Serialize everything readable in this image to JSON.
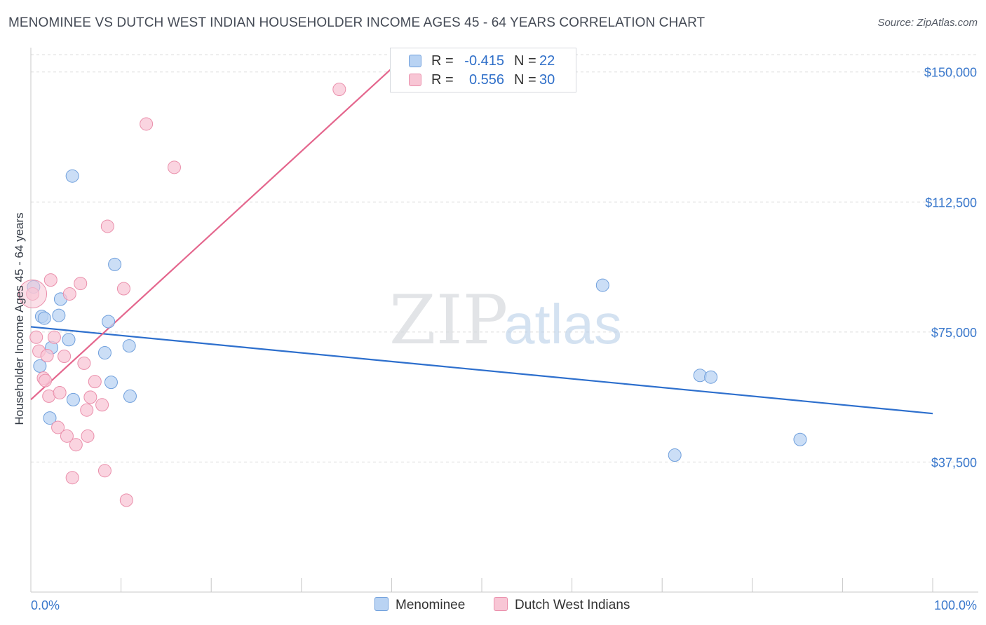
{
  "header": {
    "title": "MENOMINEE VS DUTCH WEST INDIAN HOUSEHOLDER INCOME AGES 45 - 64 YEARS CORRELATION CHART",
    "source": "Source: ZipAtlas.com"
  },
  "watermark": {
    "zip": "ZIP",
    "atlas": "atlas"
  },
  "colors": {
    "menominee_fill": "#b9d3f3",
    "menominee_stroke": "#6f9fdc",
    "menominee_line": "#2d6fcd",
    "dutch_fill": "#f8c6d5",
    "dutch_stroke": "#ea8fab",
    "dutch_line": "#e4668d",
    "tick_label": "#3a78cc",
    "grid": "#dcdcdc"
  },
  "legend_box": {
    "rows": [
      {
        "r_label": "R =",
        "r_value": "-0.415",
        "n_label": "N =",
        "n_value": "22"
      },
      {
        "r_label": "R =",
        "r_value": "0.556",
        "n_label": "N =",
        "n_value": "30"
      }
    ]
  },
  "bottom_legend": {
    "menominee": "Menominee",
    "dutch": "Dutch West Indians"
  },
  "chart_data": {
    "type": "scatter",
    "xlabel": "",
    "ylabel": "Householder Income Ages 45 - 64 years",
    "x_tick_labels": [
      "0.0%",
      "100.0%"
    ],
    "y_tick_labels": [
      "$150,000",
      "$112,500",
      "$75,000",
      "$37,500"
    ],
    "y_ticks": [
      150000,
      112500,
      75000,
      37500
    ],
    "xlim": [
      0,
      100
    ],
    "ylim": [
      0,
      155000
    ],
    "grid": true,
    "legend_position": "top-center",
    "series": [
      {
        "name": "Menominee",
        "r": -0.415,
        "n": 22,
        "points": [
          [
            0.3,
            88000
          ],
          [
            1.2,
            79500
          ],
          [
            1.5,
            79000
          ],
          [
            3.1,
            79800
          ],
          [
            3.3,
            84500
          ],
          [
            1.0,
            65200
          ],
          [
            2.3,
            70500
          ],
          [
            4.2,
            72800
          ],
          [
            4.7,
            55500
          ],
          [
            2.1,
            50200
          ],
          [
            4.6,
            120000
          ],
          [
            9.3,
            94500
          ],
          [
            8.6,
            78000
          ],
          [
            8.2,
            69000
          ],
          [
            10.9,
            71000
          ],
          [
            11.0,
            56500
          ],
          [
            8.9,
            60500
          ],
          [
            63.4,
            88500
          ],
          [
            74.2,
            62500
          ],
          [
            75.4,
            62000
          ],
          [
            71.4,
            39500
          ],
          [
            85.3,
            44000
          ]
        ],
        "trend": {
          "x": [
            0,
            100
          ],
          "y": [
            76500,
            51500
          ]
        }
      },
      {
        "name": "Dutch West Indians",
        "r": 0.556,
        "n": 30,
        "points": [
          [
            0.2,
            86000
          ],
          [
            0.6,
            73500
          ],
          [
            0.9,
            69500
          ],
          [
            1.4,
            61700
          ],
          [
            1.6,
            61000
          ],
          [
            1.8,
            68200
          ],
          [
            2.0,
            56500
          ],
          [
            2.2,
            90000
          ],
          [
            2.6,
            73500
          ],
          [
            3.0,
            47500
          ],
          [
            3.2,
            57500
          ],
          [
            3.7,
            68000
          ],
          [
            4.0,
            45000
          ],
          [
            4.3,
            86000
          ],
          [
            4.6,
            33000
          ],
          [
            5.0,
            42500
          ],
          [
            5.5,
            89000
          ],
          [
            5.9,
            66000
          ],
          [
            6.2,
            52500
          ],
          [
            6.3,
            45000
          ],
          [
            6.6,
            56200
          ],
          [
            7.1,
            60700
          ],
          [
            7.9,
            54000
          ],
          [
            8.2,
            35000
          ],
          [
            8.5,
            105500
          ],
          [
            10.3,
            87500
          ],
          [
            10.6,
            26500
          ],
          [
            12.8,
            135000
          ],
          [
            15.9,
            122500
          ],
          [
            34.2,
            145000
          ]
        ],
        "trend": {
          "x": [
            0,
            40
          ],
          "y": [
            55500,
            151000
          ]
        }
      }
    ]
  }
}
